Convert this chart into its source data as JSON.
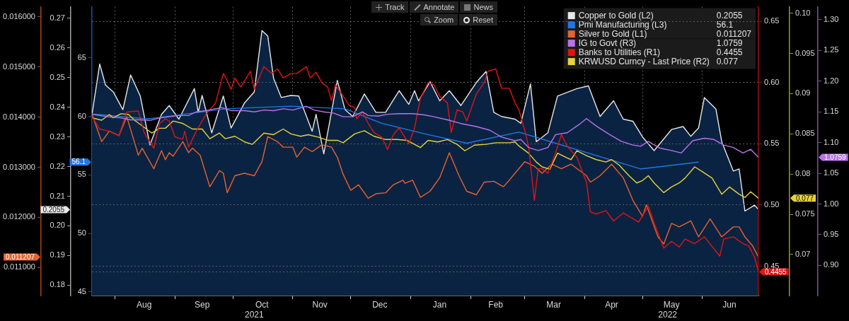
{
  "chart_data": [
    {
      "type": "line",
      "xlim": [
        "2021-07-20",
        "2022-06-30"
      ],
      "xticks": [
        {
          "value": "2021-08-01",
          "label": null
        },
        {
          "value": "2021-08-16",
          "label": "Aug"
        },
        {
          "value": "2021-09-01",
          "label": null
        },
        {
          "value": "2021-09-15",
          "label": "Sep"
        },
        {
          "value": "2021-10-01",
          "label": null
        },
        {
          "value": "2021-10-16",
          "label": "Oct"
        },
        {
          "value": "2021-11-01",
          "label": null
        },
        {
          "value": "2021-11-15",
          "label": "Nov"
        },
        {
          "value": "2021-12-01",
          "label": null
        },
        {
          "value": "2021-12-16",
          "label": "Dec"
        },
        {
          "value": "2022-01-01",
          "label": null
        },
        {
          "value": "2022-01-16",
          "label": "Jan"
        },
        {
          "value": "2022-02-01",
          "label": null
        },
        {
          "value": "2022-02-14",
          "label": "Feb"
        },
        {
          "value": "2022-03-01",
          "label": null
        },
        {
          "value": "2022-03-16",
          "label": "Mar"
        },
        {
          "value": "2022-04-01",
          "label": null
        },
        {
          "value": "2022-04-15",
          "label": "Apr"
        },
        {
          "value": "2022-05-01",
          "label": null
        },
        {
          "value": "2022-05-16",
          "label": "May"
        },
        {
          "value": "2022-06-01",
          "label": null
        },
        {
          "value": "2022-06-15",
          "label": "Jun"
        }
      ],
      "x2lim": [
        "2021-07-20",
        "2022-06-30"
      ],
      "x2ticks": [
        {
          "value": "2021-10-12",
          "label": "2021"
        },
        {
          "value": "2022-05-14",
          "label": "2022"
        }
      ],
      "ylim": [
        44.69,
        69.37
      ],
      "yticks": [
        45,
        50,
        55,
        56.1,
        60,
        65
      ],
      "y2lim": [
        0.1765,
        0.2739
      ],
      "y2ticks": [
        0.18,
        0.19,
        {
          "value": 0.2,
          "label": "0.20"
        },
        0.2055,
        0.21,
        0.22,
        0.23,
        0.24,
        0.25,
        0.26,
        0.27
      ],
      "y3lim": [
        0.01044,
        0.0162
      ],
      "y3ticks": [
        {
          "value": 0.011,
          "label": "0.011000"
        },
        0.011207,
        {
          "value": 0.012,
          "label": "0.012000"
        },
        {
          "value": 0.013,
          "label": "0.013000"
        },
        {
          "value": 0.014,
          "label": "0.014000"
        },
        {
          "value": 0.015,
          "label": "0.015000"
        },
        {
          "value": 0.016,
          "label": "0.016000"
        }
      ],
      "grid": "x",
      "legend": "top right",
      "annotations": [
        "0.2055",
        "56.1",
        "0.011207",
        "Track",
        "Annotate",
        "News",
        "Zoom",
        "Reset"
      ],
      "series": [
        {
          "name": "Copper to Gold (L2)",
          "type": "area",
          "axis": "y2",
          "color": "#e8e8e8",
          "x": [
            "2021-07-20",
            "2021-07-24",
            "2021-07-27",
            "2021-07-31",
            "2021-08-05",
            "2021-08-09",
            "2021-08-14",
            "2021-08-19",
            "2021-08-25",
            "2021-08-29",
            "2021-09-03",
            "2021-09-11",
            "2021-09-13",
            "2021-09-15",
            "2021-09-20",
            "2021-09-26",
            "2021-09-30",
            "2021-10-07",
            "2021-10-12",
            "2021-10-16",
            "2021-10-19",
            "2021-10-22",
            "2021-10-26",
            "2021-10-31",
            "2021-11-04",
            "2021-11-11",
            "2021-11-13",
            "2021-11-17",
            "2021-11-24",
            "2021-11-28",
            "2021-12-02",
            "2021-12-08",
            "2021-12-14",
            "2021-12-19",
            "2021-12-26",
            "2021-12-31",
            "2022-01-03",
            "2022-01-05",
            "2022-01-11",
            "2022-01-16",
            "2022-01-21",
            "2022-01-27",
            "2022-02-04",
            "2022-02-09",
            "2022-02-13",
            "2022-02-17",
            "2022-02-24",
            "2022-02-27",
            "2022-03-04",
            "2022-03-07",
            "2022-03-13",
            "2022-03-18",
            "2022-03-28",
            "2022-04-03",
            "2022-04-09",
            "2022-04-16",
            "2022-04-21",
            "2022-04-26",
            "2022-05-01",
            "2022-05-07",
            "2022-05-16",
            "2022-05-22",
            "2022-05-26",
            "2022-05-30",
            "2022-06-02",
            "2022-06-08",
            "2022-06-11",
            "2022-06-17",
            "2022-06-20",
            "2022-06-23",
            "2022-06-28",
            "2022-06-30"
          ],
          "values": [
            0.2376,
            0.2546,
            0.2475,
            0.2452,
            0.2392,
            0.2509,
            0.2438,
            0.2273,
            0.2376,
            0.2406,
            0.236,
            0.2463,
            0.2383,
            0.244,
            0.2314,
            0.2438,
            0.233,
            0.2415,
            0.2452,
            0.2659,
            0.264,
            0.2498,
            0.2433,
            0.244,
            0.2438,
            0.2319,
            0.2376,
            0.2243,
            0.2491,
            0.2392,
            0.2369,
            0.2445,
            0.2383,
            0.2383,
            0.2456,
            0.241,
            0.2456,
            0.2422,
            0.2486,
            0.2422,
            0.2456,
            0.2406,
            0.2484,
            0.2521,
            0.2383,
            0.2369,
            0.236,
            0.2346,
            0.2479,
            0.2284,
            0.2314,
            0.2438,
            0.2463,
            0.2472,
            0.2369,
            0.2422,
            0.236,
            0.2353,
            0.23,
            0.2254,
            0.2325,
            0.2335,
            0.2302,
            0.233,
            0.2433,
            0.2394,
            0.2284,
            0.2185,
            0.2192,
            0.205,
            0.207,
            0.2055
          ]
        },
        {
          "name": "Pmi Manufacturing (L3)",
          "axis": "y",
          "color": "#1f78e6",
          "x": [
            "2021-07-20",
            "2021-08-18",
            "2021-09-27",
            "2021-10-31",
            "2021-11-28",
            "2021-12-17",
            "2022-01-08",
            "2022-01-30",
            "2022-02-26",
            "2022-04-30",
            "2022-05-30"
          ],
          "values": [
            60.21,
            59.78,
            60.65,
            60.88,
            60.65,
            59.41,
            58.52,
            57.71,
            58.66,
            55.51,
            56.1
          ]
        },
        {
          "name": "Silver to Gold (L1)",
          "axis": "y3",
          "color": "#e8622c",
          "x": [
            "2021-07-20",
            "2021-07-25",
            "2021-07-29",
            "2021-08-03",
            "2021-08-07",
            "2021-08-13",
            "2021-08-15",
            "2021-08-21",
            "2021-08-25",
            "2021-08-27",
            "2021-08-29",
            "2021-08-31",
            "2021-09-05",
            "2021-09-08",
            "2021-09-10",
            "2021-09-14",
            "2021-09-19",
            "2021-09-24",
            "2021-09-26",
            "2021-09-28",
            "2021-10-02",
            "2021-10-07",
            "2021-10-12",
            "2021-10-16",
            "2021-10-19",
            "2021-10-24",
            "2021-10-27",
            "2021-11-01",
            "2021-11-03",
            "2021-11-07",
            "2021-11-11",
            "2021-11-16",
            "2021-11-21",
            "2021-11-24",
            "2021-11-27",
            "2021-12-01",
            "2021-12-05",
            "2021-12-10",
            "2021-12-14",
            "2021-12-19",
            "2021-12-23",
            "2021-12-28",
            "2021-12-29",
            "2022-01-02",
            "2022-01-06",
            "2022-01-11",
            "2022-01-16",
            "2022-01-21",
            "2022-01-26",
            "2022-01-30",
            "2022-02-04",
            "2022-02-08",
            "2022-02-13",
            "2022-02-18",
            "2022-02-21",
            "2022-02-24",
            "2022-03-01",
            "2022-03-06",
            "2022-03-10",
            "2022-03-15",
            "2022-03-20",
            "2022-03-25",
            "2022-04-02",
            "2022-04-04",
            "2022-04-09",
            "2022-04-15",
            "2022-04-21",
            "2022-04-26",
            "2022-05-01",
            "2022-05-03",
            "2022-05-09",
            "2022-05-12",
            "2022-05-16",
            "2022-05-20",
            "2022-05-26",
            "2022-05-30",
            "2022-06-05",
            "2022-06-11",
            "2022-06-17",
            "2022-06-20",
            "2022-06-23",
            "2022-06-27",
            "2022-06-30"
          ],
          "values": [
            0.01406,
            0.01351,
            0.01372,
            0.01363,
            0.01401,
            0.01324,
            0.01338,
            0.01297,
            0.01333,
            0.01315,
            0.01329,
            0.01322,
            0.01351,
            0.01329,
            0.01338,
            0.01324,
            0.01261,
            0.01293,
            0.01288,
            0.01249,
            0.01283,
            0.01288,
            0.01283,
            0.01311,
            0.01361,
            0.01351,
            0.0134,
            0.0134,
            0.0132,
            0.0134,
            0.01331,
            0.01345,
            0.0134,
            0.0132,
            0.01286,
            0.01254,
            0.01265,
            0.01238,
            0.01247,
            0.01249,
            0.01265,
            0.01274,
            0.01268,
            0.01274,
            0.0124,
            0.01252,
            0.01279,
            0.01329,
            0.01283,
            0.01252,
            0.01245,
            0.0127,
            0.01272,
            0.01261,
            0.01274,
            0.01288,
            0.01311,
            0.01302,
            0.01288,
            0.01306,
            0.01297,
            0.01306,
            0.01283,
            0.0127,
            0.01283,
            0.01306,
            0.01279,
            0.01234,
            0.01202,
            0.01225,
            0.01161,
            0.01147,
            0.01188,
            0.01181,
            0.01193,
            0.01161,
            0.01197,
            0.01161,
            0.01181,
            0.01181,
            0.01161,
            0.01143,
            0.011207
          ]
        }
      ]
    },
    {
      "type": "line",
      "xlim": [
        "2021-07-20",
        "2022-06-30"
      ],
      "tick_labels": "y",
      "ylim": [
        0.4261,
        0.6618
      ],
      "yticks": [
        0.4455,
        0.45,
        {
          "value": 0.5,
          "label": "0.50"
        },
        0.55,
        {
          "value": 0.6,
          "label": "0.60"
        },
        0.65
      ],
      "y2lim": [
        0.0649,
        0.1008
      ],
      "y2ticks": [
        0.07,
        0.075,
        0.077,
        0.08,
        0.085,
        0.09,
        0.095,
        {
          "value": 0.1,
          "label": "0.10"
        }
      ],
      "y3lim": [
        0.851,
        1.321
      ],
      "y3ticks": [
        {
          "value": 0.9,
          "label": "0.90"
        },
        0.95,
        {
          "value": 1,
          "label": "1.00"
        },
        1.05,
        1.0759,
        {
          "value": 1.1,
          "label": "1.10"
        },
        1.15,
        {
          "value": 1.2,
          "label": "1.20"
        },
        1.25,
        {
          "value": 1.3,
          "label": "1.30"
        }
      ],
      "grid": "y",
      "annotations": [
        "1.0759",
        "0.4455",
        "0.077"
      ],
      "legend": "top right",
      "series": [
        {
          "name": "IG to Govt (R3)",
          "axis": "y3",
          "color": "#b873e6",
          "x": [
            "2021-07-20",
            "2021-07-28",
            "2021-08-04",
            "2021-08-09",
            "2021-08-14",
            "2021-08-19",
            "2021-08-24",
            "2021-08-29",
            "2021-09-03",
            "2021-09-08",
            "2021-09-12",
            "2021-09-17",
            "2021-09-25",
            "2021-09-30",
            "2021-10-07",
            "2021-10-12",
            "2021-10-17",
            "2021-10-22",
            "2021-10-27",
            "2021-11-01",
            "2021-11-08",
            "2021-11-12",
            "2021-11-17",
            "2021-11-22",
            "2021-11-27",
            "2021-12-02",
            "2021-12-07",
            "2021-12-10",
            "2021-12-15",
            "2021-12-20",
            "2021-12-26",
            "2022-01-02",
            "2022-01-08",
            "2022-01-13",
            "2022-01-20",
            "2022-01-27",
            "2022-02-04",
            "2022-02-11",
            "2022-02-17",
            "2022-02-24",
            "2022-02-27",
            "2022-03-03",
            "2022-03-08",
            "2022-03-13",
            "2022-03-17",
            "2022-03-23",
            "2022-03-29",
            "2022-04-02",
            "2022-04-07",
            "2022-04-14",
            "2022-04-20",
            "2022-04-26",
            "2022-04-30",
            "2022-05-04",
            "2022-05-06",
            "2022-05-10",
            "2022-05-16",
            "2022-05-21",
            "2022-05-27",
            "2022-06-02",
            "2022-06-07",
            "2022-06-12",
            "2022-06-17",
            "2022-06-22",
            "2022-06-26",
            "2022-06-30"
          ],
          "values": [
            1.146,
            1.142,
            1.14,
            1.137,
            1.137,
            1.136,
            1.14,
            1.142,
            1.144,
            1.144,
            1.15,
            1.152,
            1.157,
            1.152,
            1.152,
            1.15,
            1.153,
            1.152,
            1.155,
            1.153,
            1.159,
            1.153,
            1.15,
            1.148,
            1.142,
            1.142,
            1.15,
            1.144,
            1.143,
            1.146,
            1.147,
            1.147,
            1.145,
            1.142,
            1.137,
            1.131,
            1.126,
            1.12,
            1.109,
            1.103,
            1.105,
            1.092,
            1.087,
            1.092,
            1.113,
            1.116,
            1.129,
            1.139,
            1.127,
            1.113,
            1.102,
            1.096,
            1.094,
            1.102,
            1.098,
            1.091,
            1.087,
            1.083,
            1.103,
            1.107,
            1.105,
            1.096,
            1.092,
            1.083,
            1.089,
            1.0759
          ]
        },
        {
          "name": "Banks to Utilities (R1)",
          "axis": "y",
          "color": "#e01414",
          "x": [
            "2021-07-20",
            "2021-07-24",
            "2021-07-29",
            "2021-08-03",
            "2021-08-07",
            "2021-08-13",
            "2021-08-16",
            "2021-08-21",
            "2021-08-24",
            "2021-08-27",
            "2021-08-29",
            "2021-09-01",
            "2021-09-05",
            "2021-09-06",
            "2021-09-08",
            "2021-09-12",
            "2021-09-17",
            "2021-09-22",
            "2021-09-26",
            "2021-09-28",
            "2021-09-30",
            "2021-10-02",
            "2021-10-05",
            "2021-10-10",
            "2021-10-12",
            "2021-10-17",
            "2021-10-21",
            "2021-10-24",
            "2021-10-27",
            "2021-10-31",
            "2021-11-03",
            "2021-11-08",
            "2021-11-10",
            "2021-11-13",
            "2021-11-16",
            "2021-11-19",
            "2021-11-21",
            "2021-11-23",
            "2021-11-27",
            "2021-11-30",
            "2021-12-03",
            "2021-12-04",
            "2021-12-07",
            "2021-12-10",
            "2021-12-13",
            "2021-12-17",
            "2021-12-20",
            "2021-12-23",
            "2021-12-26",
            "2021-12-31",
            "2022-01-03",
            "2022-01-06",
            "2022-01-10",
            "2022-01-13",
            "2022-01-16",
            "2022-01-20",
            "2022-01-22",
            "2022-01-25",
            "2022-01-28",
            "2022-01-30",
            "2022-02-04",
            "2022-02-08",
            "2022-02-10",
            "2022-02-14",
            "2022-02-17",
            "2022-02-21",
            "2022-02-24",
            "2022-02-26",
            "2022-03-01",
            "2022-03-03",
            "2022-03-06",
            "2022-03-08",
            "2022-03-10",
            "2022-03-13",
            "2022-03-17",
            "2022-03-20",
            "2022-03-23",
            "2022-03-28",
            "2022-04-02",
            "2022-04-04",
            "2022-04-07",
            "2022-04-12",
            "2022-04-16",
            "2022-04-21",
            "2022-04-26",
            "2022-04-29",
            "2022-05-04",
            "2022-05-07",
            "2022-05-12",
            "2022-05-16",
            "2022-05-20",
            "2022-05-23",
            "2022-05-28",
            "2022-06-02",
            "2022-06-10",
            "2022-06-12",
            "2022-06-17",
            "2022-06-22",
            "2022-06-25",
            "2022-06-28",
            "2022-06-30"
          ],
          "values": [
            0.5722,
            0.562,
            0.5602,
            0.5565,
            0.5759,
            0.5768,
            0.5592,
            0.5463,
            0.5666,
            0.5703,
            0.5685,
            0.5555,
            0.5537,
            0.5602,
            0.5472,
            0.5602,
            0.574,
            0.5833,
            0.6074,
            0.6018,
            0.5944,
            0.6037,
            0.5963,
            0.6092,
            0.5944,
            0.6129,
            0.6074,
            0.6111,
            0.6037,
            0.6074,
            0.6074,
            0.6129,
            0.6037,
            0.6083,
            0.5999,
            0.5963,
            0.5852,
            0.5981,
            0.5889,
            0.5815,
            0.5796,
            0.5703,
            0.5759,
            0.5666,
            0.5592,
            0.5555,
            0.5453,
            0.5574,
            0.5629,
            0.55,
            0.5629,
            0.587,
            0.5999,
            0.5981,
            0.5889,
            0.5833,
            0.5592,
            0.5778,
            0.5759,
            0.5685,
            0.5907,
            0.5999,
            0.6092,
            0.6111,
            0.5953,
            0.5953,
            0.5833,
            0.5778,
            0.5611,
            0.5481,
            0.5037,
            0.5296,
            0.5296,
            0.5259,
            0.5426,
            0.5574,
            0.5481,
            0.5389,
            0.5185,
            0.4944,
            0.4926,
            0.4954,
            0.487,
            0.4935,
            0.4889,
            0.4861,
            0.499,
            0.4852,
            0.4648,
            0.4704,
            0.4657,
            0.4722,
            0.4685,
            0.4741,
            0.4583,
            0.4722,
            0.4741,
            0.4685,
            0.4666,
            0.4574,
            0.4455
          ]
        },
        {
          "name": "KRWUSD Curncy - Last Price (R2)",
          "axis": "y2",
          "color": "#e6d43a",
          "x": [
            "2021-07-20",
            "2021-07-25",
            "2021-07-29",
            "2021-07-31",
            "2021-08-04",
            "2021-08-08",
            "2021-08-11",
            "2021-08-15",
            "2021-08-20",
            "2021-08-24",
            "2021-08-27",
            "2021-08-31",
            "2021-09-05",
            "2021-09-10",
            "2021-09-15",
            "2021-09-19",
            "2021-09-24",
            "2021-09-27",
            "2021-10-02",
            "2021-10-07",
            "2021-10-11",
            "2021-10-17",
            "2021-10-22",
            "2021-10-27",
            "2021-10-31",
            "2021-11-05",
            "2021-11-09",
            "2021-11-14",
            "2021-11-19",
            "2021-11-24",
            "2021-11-27",
            "2021-12-03",
            "2021-12-08",
            "2021-12-13",
            "2021-12-19",
            "2021-12-25",
            "2021-12-30",
            "2022-01-06",
            "2022-01-10",
            "2022-01-15",
            "2022-01-20",
            "2022-01-25",
            "2022-01-29",
            "2022-02-03",
            "2022-02-09",
            "2022-02-14",
            "2022-02-21",
            "2022-02-24",
            "2022-02-26",
            "2022-03-03",
            "2022-03-07",
            "2022-03-10",
            "2022-03-14",
            "2022-03-18",
            "2022-03-23",
            "2022-03-25",
            "2022-03-28",
            "2022-04-02",
            "2022-04-07",
            "2022-04-12",
            "2022-04-15",
            "2022-04-19",
            "2022-04-24",
            "2022-04-28",
            "2022-05-01",
            "2022-05-04",
            "2022-05-07",
            "2022-05-12",
            "2022-05-16",
            "2022-05-20",
            "2022-05-23",
            "2022-05-28",
            "2022-06-01",
            "2022-06-06",
            "2022-06-11",
            "2022-06-15",
            "2022-06-20",
            "2022-06-23",
            "2022-06-26",
            "2022-06-30"
          ],
          "values": [
            0.087,
            0.0867,
            0.0874,
            0.087,
            0.0875,
            0.0874,
            0.0867,
            0.086,
            0.0851,
            0.0857,
            0.0857,
            0.0866,
            0.0863,
            0.0856,
            0.0856,
            0.0844,
            0.0851,
            0.0844,
            0.0847,
            0.084,
            0.0837,
            0.0851,
            0.0849,
            0.0856,
            0.085,
            0.0847,
            0.0849,
            0.0846,
            0.0842,
            0.0842,
            0.0839,
            0.085,
            0.0854,
            0.0847,
            0.0843,
            0.0843,
            0.0842,
            0.0833,
            0.0842,
            0.084,
            0.0843,
            0.0837,
            0.0829,
            0.0836,
            0.0837,
            0.0839,
            0.0839,
            0.084,
            0.0835,
            0.0826,
            0.0815,
            0.0809,
            0.0806,
            0.0826,
            0.082,
            0.0818,
            0.0829,
            0.0823,
            0.0818,
            0.0815,
            0.0818,
            0.0811,
            0.0798,
            0.0789,
            0.0792,
            0.0798,
            0.0789,
            0.0777,
            0.0784,
            0.0789,
            0.0795,
            0.0809,
            0.0803,
            0.0795,
            0.0775,
            0.0784,
            0.0775,
            0.0771,
            0.0778,
            0.077
          ]
        }
      ]
    }
  ]
}
